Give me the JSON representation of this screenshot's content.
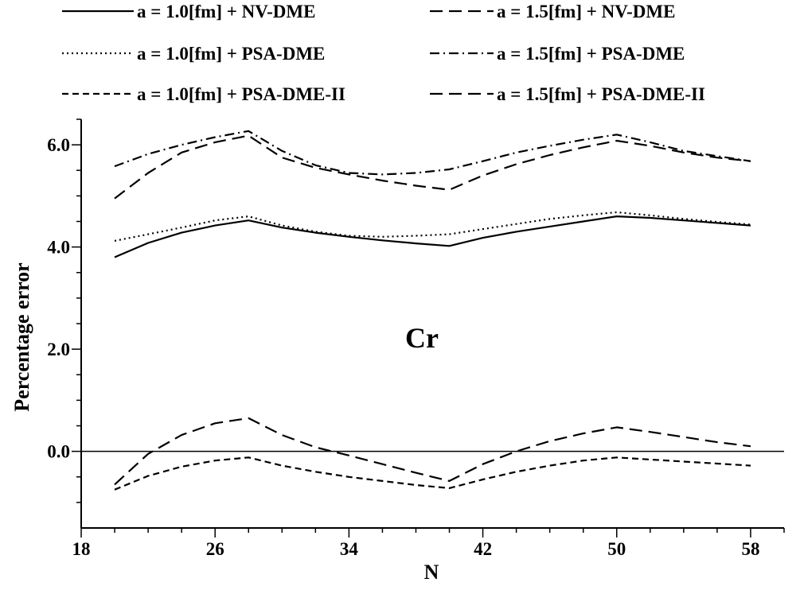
{
  "chart_data": {
    "type": "line",
    "title": "",
    "xlabel": "N",
    "ylabel": "Percentage error",
    "annotation": "Cr",
    "xlim": [
      18,
      60
    ],
    "ylim": [
      -1.5,
      6.5
    ],
    "x_ticks": [
      18,
      26,
      34,
      42,
      50,
      58
    ],
    "x_tick_labels": [
      "18",
      "26",
      "34",
      "42",
      "50",
      "58"
    ],
    "y_ticks": [
      0.0,
      2.0,
      4.0,
      6.0
    ],
    "y_tick_labels": [
      "0.0",
      "2.0",
      "4.0",
      "6.0"
    ],
    "reference_line_y": 0.0,
    "grid": false,
    "legend_position": "top",
    "x": [
      20,
      22,
      24,
      26,
      28,
      30,
      32,
      34,
      36,
      38,
      40,
      42,
      44,
      46,
      48,
      50,
      52,
      54,
      56,
      58
    ],
    "series": [
      {
        "name": "a = 1.0[fm] + NV-DME",
        "line_style": "solid",
        "values": [
          3.8,
          4.08,
          4.28,
          4.42,
          4.52,
          4.38,
          4.28,
          4.2,
          4.13,
          4.07,
          4.02,
          4.18,
          4.3,
          4.4,
          4.5,
          4.6,
          4.57,
          4.52,
          4.47,
          4.42
        ]
      },
      {
        "name": "a = 1.5[fm] + NV-DME",
        "line_style": "long-dash",
        "values": [
          4.95,
          5.45,
          5.85,
          6.05,
          6.18,
          5.75,
          5.55,
          5.42,
          5.3,
          5.2,
          5.12,
          5.4,
          5.62,
          5.8,
          5.95,
          6.08,
          5.98,
          5.85,
          5.75,
          5.68
        ]
      },
      {
        "name": "a = 1.0[fm] + PSA-DME",
        "line_style": "dotted",
        "values": [
          4.12,
          4.25,
          4.38,
          4.52,
          4.6,
          4.42,
          4.3,
          4.22,
          4.2,
          4.22,
          4.25,
          4.35,
          4.45,
          4.55,
          4.62,
          4.68,
          4.62,
          4.55,
          4.49,
          4.44
        ]
      },
      {
        "name": "a = 1.5[fm] + PSA-DME",
        "line_style": "dash-dot",
        "values": [
          5.58,
          5.82,
          6.0,
          6.15,
          6.27,
          5.88,
          5.6,
          5.45,
          5.42,
          5.45,
          5.52,
          5.68,
          5.85,
          5.98,
          6.1,
          6.2,
          6.05,
          5.88,
          5.78,
          5.68
        ]
      },
      {
        "name": "a = 1.0[fm] + PSA-DME-II",
        "line_style": "short-dash",
        "values": [
          -0.75,
          -0.48,
          -0.3,
          -0.18,
          -0.12,
          -0.28,
          -0.4,
          -0.5,
          -0.58,
          -0.66,
          -0.72,
          -0.55,
          -0.4,
          -0.28,
          -0.18,
          -0.12,
          -0.16,
          -0.2,
          -0.24,
          -0.28
        ]
      },
      {
        "name": "a = 1.5[fm] + PSA-DME-II",
        "line_style": "long-dash",
        "values": [
          -0.65,
          -0.05,
          0.32,
          0.55,
          0.65,
          0.32,
          0.08,
          -0.08,
          -0.25,
          -0.42,
          -0.58,
          -0.25,
          0.0,
          0.2,
          0.35,
          0.47,
          0.38,
          0.28,
          0.18,
          0.1
        ]
      }
    ]
  }
}
